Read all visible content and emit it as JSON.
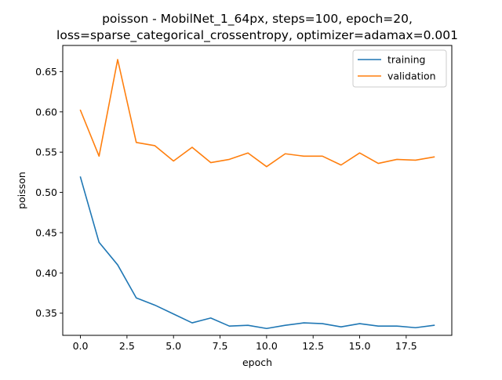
{
  "chart_data": {
    "type": "line",
    "title_lines": [
      "poisson - MobilNet_1_64px, steps=100, epoch=20,",
      "loss=sparse_categorical_crossentropy, optimizer=adamax=0.001"
    ],
    "xlabel": "epoch",
    "ylabel": "poisson",
    "xlim": [
      -0.95,
      19.95
    ],
    "ylim": [
      0.3225,
      0.6825
    ],
    "xticks": [
      0.0,
      2.5,
      5.0,
      7.5,
      10.0,
      12.5,
      15.0,
      17.5
    ],
    "xtick_labels": [
      "0.0",
      "2.5",
      "5.0",
      "7.5",
      "10.0",
      "12.5",
      "15.0",
      "17.5"
    ],
    "yticks": [
      0.35,
      0.4,
      0.45,
      0.5,
      0.55,
      0.6,
      0.65
    ],
    "ytick_labels": [
      "0.35",
      "0.40",
      "0.45",
      "0.50",
      "0.55",
      "0.60",
      "0.65"
    ],
    "grid": false,
    "legend_position": "upper right",
    "x": [
      0,
      1,
      2,
      3,
      4,
      5,
      6,
      7,
      8,
      9,
      10,
      11,
      12,
      13,
      14,
      15,
      16,
      17,
      18,
      19
    ],
    "series": [
      {
        "name": "training",
        "color": "#1f77b4",
        "values": [
          0.519,
          0.438,
          0.41,
          0.369,
          0.36,
          0.349,
          0.338,
          0.344,
          0.334,
          0.335,
          0.331,
          0.335,
          0.338,
          0.337,
          0.333,
          0.337,
          0.334,
          0.334,
          0.332,
          0.335
        ]
      },
      {
        "name": "validation",
        "color": "#ff7f0e",
        "values": [
          0.602,
          0.545,
          0.665,
          0.562,
          0.558,
          0.539,
          0.556,
          0.537,
          0.541,
          0.549,
          0.532,
          0.548,
          0.545,
          0.545,
          0.534,
          0.549,
          0.536,
          0.541,
          0.54,
          0.544
        ]
      }
    ]
  }
}
